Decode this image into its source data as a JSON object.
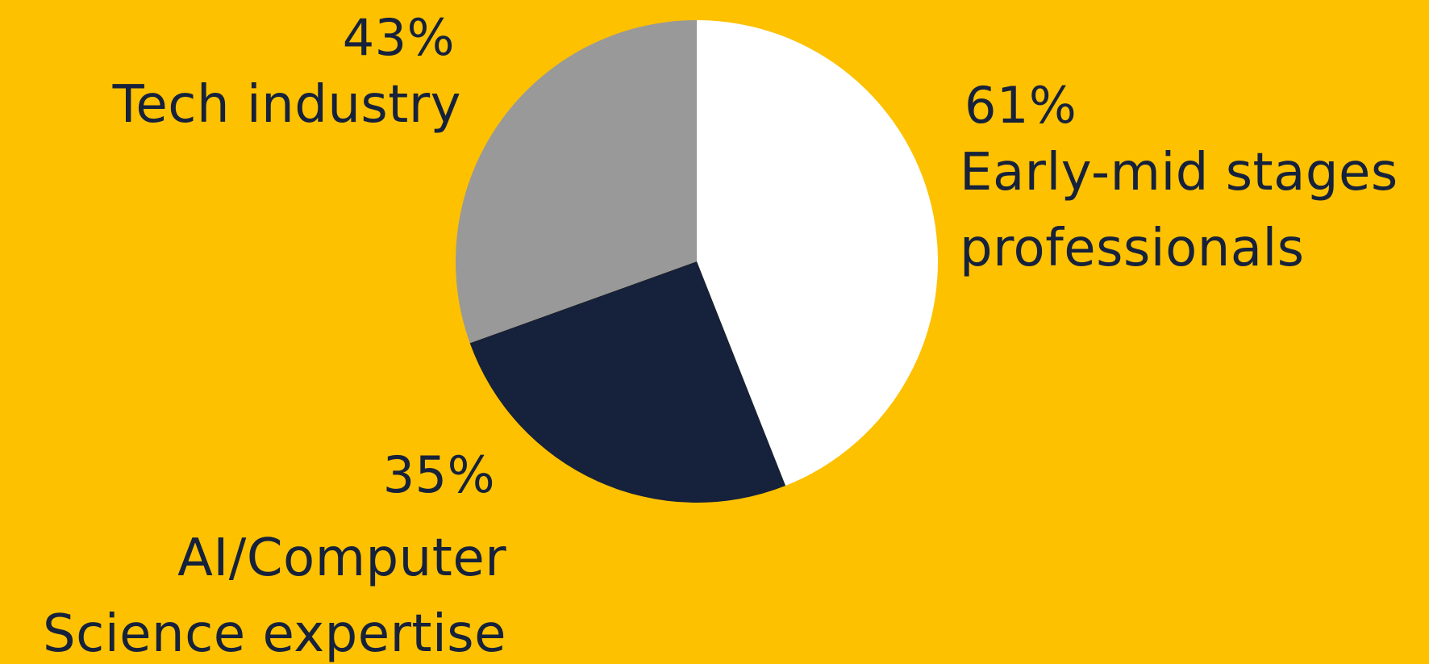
{
  "background_color": "#FDC100",
  "text_color": "#16213B",
  "chart_data": {
    "type": "pie",
    "title": "",
    "slices": [
      {
        "percent_label": "61%",
        "label": [
          "Early-mid stages",
          "professionals"
        ],
        "share": 0.44,
        "color": "#FFFFFF"
      },
      {
        "percent_label": "35%",
        "label": [
          "AI/Computer",
          "Science expertise"
        ],
        "share": 0.255,
        "color": "#16213B"
      },
      {
        "percent_label": "43%",
        "label": [
          "Tech industry"
        ],
        "share": 0.305,
        "color": "#999999"
      }
    ]
  }
}
